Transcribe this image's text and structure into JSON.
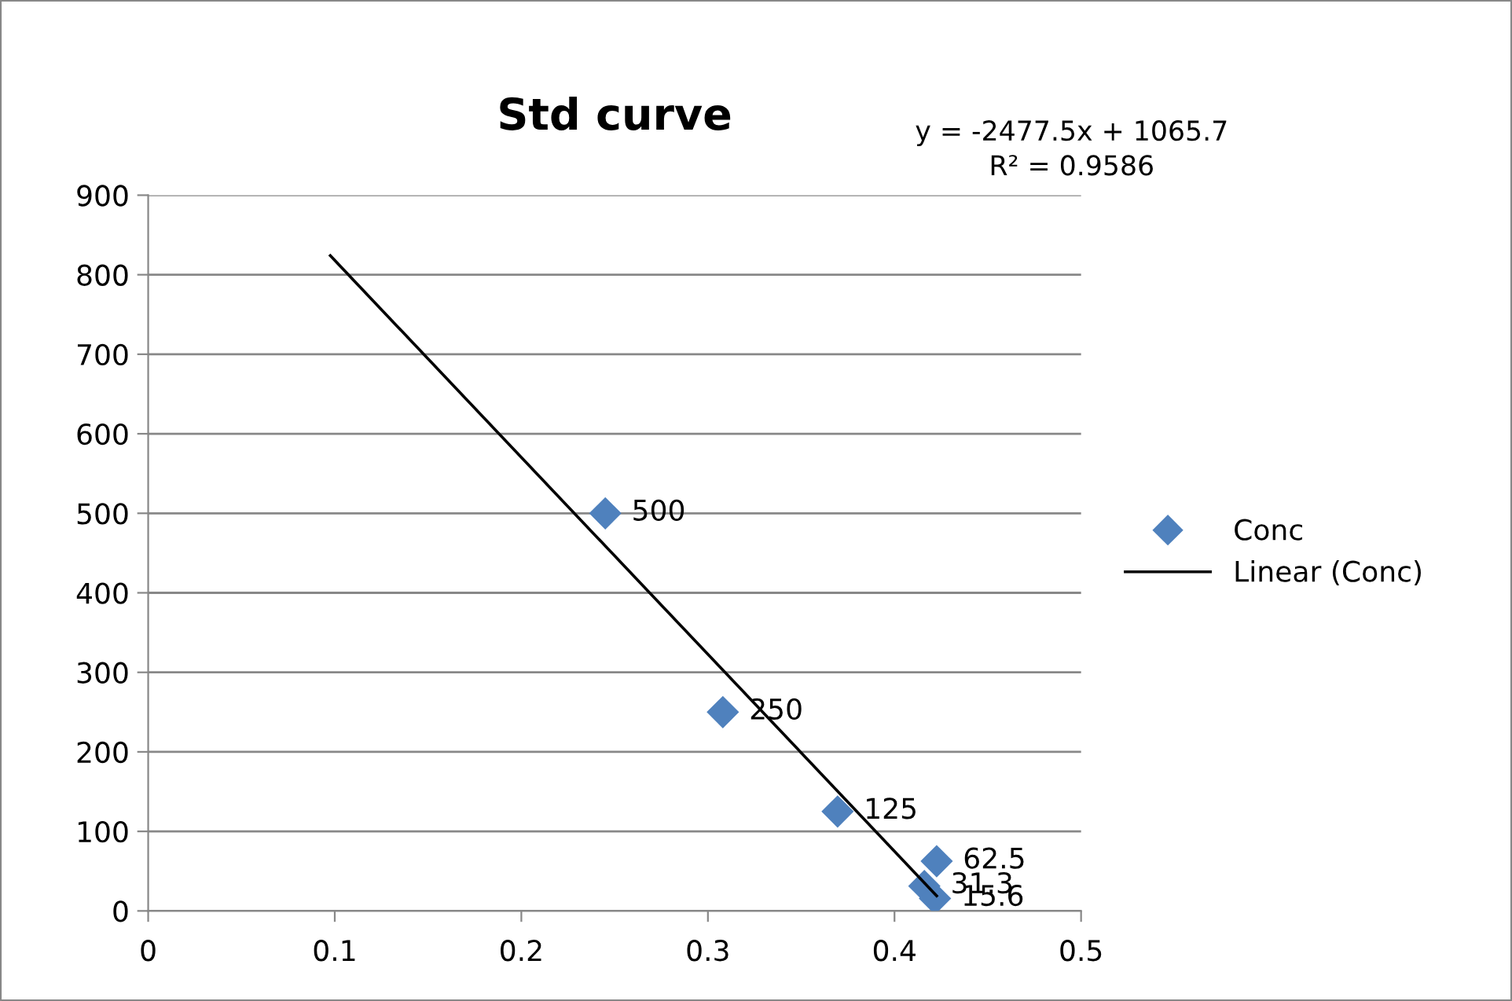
{
  "chart_data": {
    "type": "scatter",
    "title": "Std curve",
    "series": [
      {
        "name": "Conc",
        "color": "#4f81bd",
        "marker": "diamond",
        "data_labels": true,
        "x": [
          0.245,
          0.308,
          0.3695,
          0.4226,
          0.416,
          0.4217
        ],
        "values": [
          500,
          250,
          125,
          62.5,
          31.3,
          15.6
        ]
      },
      {
        "name": "Linear (Conc)",
        "type": "line",
        "color": "#000000",
        "marker": "none",
        "line_style": "solid",
        "x": [
          0.0976,
          0.4226
        ],
        "values": [
          824,
          19
        ]
      }
    ],
    "annotations": [
      "y = -2477.5x + 1065.7\nR² = 0.9586"
    ],
    "xlim": [
      0,
      0.5
    ],
    "xticks": [
      0,
      0.1,
      0.2,
      0.3,
      0.4,
      0.5
    ],
    "ylim": [
      0,
      900
    ],
    "yticks": [
      0,
      100,
      200,
      300,
      400,
      500,
      600,
      700,
      800,
      900
    ],
    "grid": "y",
    "legend": "right"
  }
}
